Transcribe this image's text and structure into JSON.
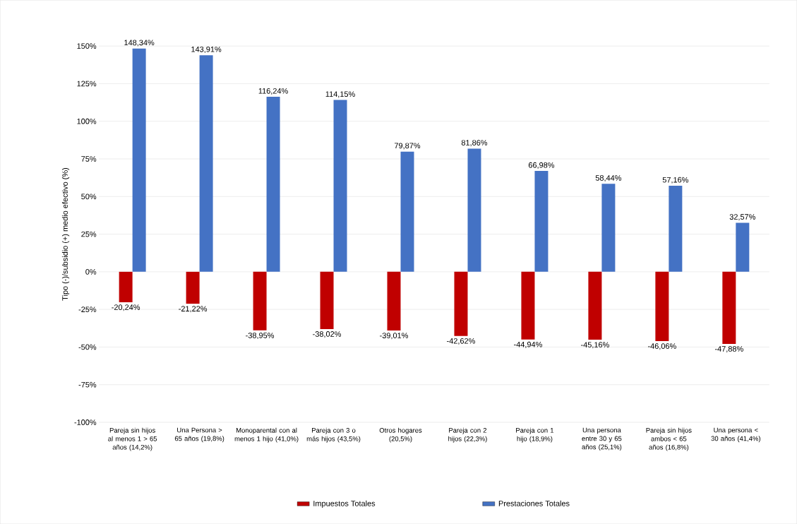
{
  "chart_data": {
    "type": "bar",
    "ylabel": "Tipo (-)/subsidio (+) medio efectivo (%)",
    "categories": [
      "Pareja sin hijos al menos 1 > 65 años (14,2%)",
      "Una Persona > 65 años (19,8%)",
      "Monoparental con al menos 1 hijo (41,0%)",
      "Pareja con 3 o más hijos (43,5%)",
      "Otros hogares (20,5%)",
      "Pareja con 2 hijos (22,3%)",
      "Pareja con 1 hijo (18,9%)",
      "Una persona entre 30 y 65 años (25,1%)",
      "Pareja sin hijos ambos < 65 años (16,8%)",
      "Una persona < 30 años (41,4%)"
    ],
    "series": [
      {
        "name": "Impuestos Totales",
        "color": "#c00000",
        "values": [
          -20.24,
          -21.22,
          -38.95,
          -38.02,
          -39.01,
          -42.62,
          -44.94,
          -45.16,
          -46.06,
          -47.88
        ],
        "value_labels": [
          "-20,24%",
          "-21,22%",
          "-38,95%",
          "-38,02%",
          "-39,01%",
          "-42,62%",
          "-44,94%",
          "-45,16%",
          "-46,06%",
          "-47,88%"
        ]
      },
      {
        "name": "Prestaciones Totales",
        "color": "#4472c4",
        "values": [
          148.34,
          143.91,
          116.24,
          114.15,
          79.87,
          81.86,
          66.98,
          58.44,
          57.16,
          32.57
        ],
        "value_labels": [
          "148,34%",
          "143,91%",
          "116,24%",
          "114,15%",
          "79,87%",
          "81,86%",
          "66,98%",
          "58,44%",
          "57,16%",
          "32,57%"
        ]
      }
    ],
    "ylim": [
      -100,
      150
    ],
    "yticks": [
      {
        "value": -100,
        "label": "-100%"
      },
      {
        "value": -75,
        "label": "-75%"
      },
      {
        "value": -50,
        "label": "-50%"
      },
      {
        "value": -25,
        "label": "-25%"
      },
      {
        "value": 0,
        "label": "0%"
      },
      {
        "value": 25,
        "label": "25%"
      },
      {
        "value": 50,
        "label": "50%"
      },
      {
        "value": 75,
        "label": "75%"
      },
      {
        "value": 100,
        "label": "100%"
      },
      {
        "value": 125,
        "label": "125%"
      },
      {
        "value": 150,
        "label": "150%"
      }
    ],
    "grid": "y",
    "legend": "bottom"
  }
}
